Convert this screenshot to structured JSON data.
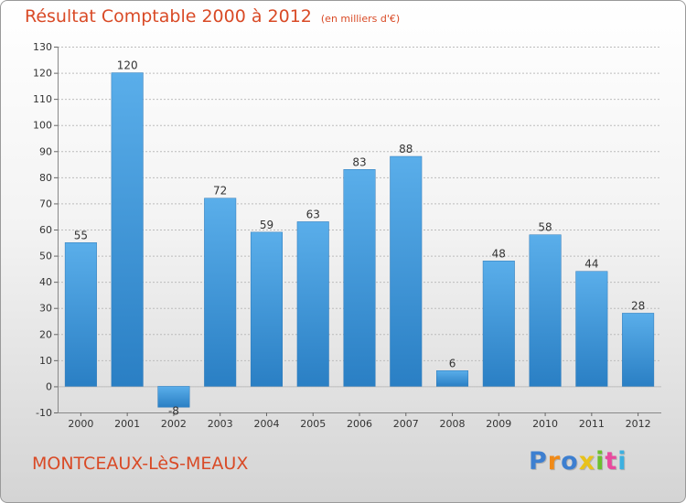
{
  "chart_data": {
    "type": "bar",
    "title": "Résultat Comptable 2000 à 2012",
    "subtitle": "(en milliers d'€)",
    "categories": [
      "2000",
      "2001",
      "2002",
      "2003",
      "2004",
      "2005",
      "2006",
      "2007",
      "2008",
      "2009",
      "2010",
      "2011",
      "2012"
    ],
    "values": [
      55,
      120,
      -8,
      72,
      59,
      63,
      83,
      88,
      6,
      48,
      58,
      44,
      28
    ],
    "ylim": [
      -10,
      130
    ],
    "yticks": [
      -10,
      0,
      10,
      20,
      30,
      40,
      50,
      60,
      70,
      80,
      90,
      100,
      110,
      120,
      130
    ],
    "grid": true,
    "legend": "none",
    "bar_color": "#4a9fdf"
  },
  "location": "MONTCEAUX-LèS-MEAUX",
  "logo": {
    "text": "Proxiti",
    "letters": [
      "P",
      "r",
      "o",
      "x",
      "i",
      "t",
      "i"
    ],
    "colors": [
      "#3d7fd0",
      "#f08a18",
      "#3d7fd0",
      "#e8c21a",
      "#6cbf2e",
      "#e84a9e",
      "#3db0e0"
    ]
  },
  "colors": {
    "title": "#d94a26",
    "grid": "#bcbcbc"
  }
}
